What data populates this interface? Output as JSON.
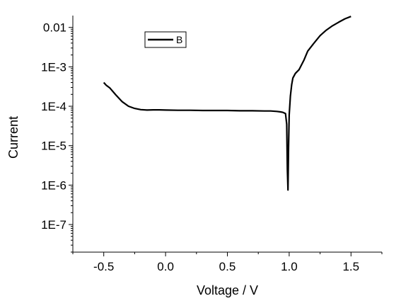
{
  "chart_data": {
    "type": "line",
    "title": "",
    "xlabel": "Voltage / V",
    "ylabel": "Current",
    "xlim": [
      -0.75,
      1.75
    ],
    "ylim_log10": [
      -7.7,
      -1.7
    ],
    "y_scale": "log",
    "x_ticks": [
      -0.5,
      0.0,
      0.5,
      1.0,
      1.5
    ],
    "x_tick_labels": [
      "-0.5",
      "0.0",
      "0.5",
      "1.0",
      "1.5"
    ],
    "y_ticks_log10": [
      -7,
      -6,
      -5,
      -4,
      -3,
      -2
    ],
    "y_tick_labels": [
      "1E-7",
      "1E-6",
      "1E-5",
      "1E-4",
      "1E-3",
      "0.01"
    ],
    "grid": false,
    "legend_position": "top-left",
    "series": [
      {
        "name": "B",
        "color": "#000000",
        "x": [
          -0.5,
          -0.48,
          -0.45,
          -0.4,
          -0.35,
          -0.3,
          -0.25,
          -0.2,
          -0.15,
          -0.1,
          -0.05,
          0.0,
          0.1,
          0.2,
          0.3,
          0.4,
          0.5,
          0.6,
          0.7,
          0.8,
          0.85,
          0.9,
          0.93,
          0.95,
          0.97,
          0.98,
          0.985,
          0.99,
          0.995,
          1.0,
          1.01,
          1.02,
          1.03,
          1.05,
          1.08,
          1.12,
          1.15,
          1.2,
          1.25,
          1.3,
          1.35,
          1.4,
          1.45,
          1.5
        ],
        "y": [
          0.0004,
          0.00034,
          0.00029,
          0.00019,
          0.00013,
          0.0001,
          8.8e-05,
          8.2e-05,
          8e-05,
          8.1e-05,
          8.1e-05,
          8e-05,
          7.9e-05,
          7.9e-05,
          7.8e-05,
          7.8e-05,
          7.8e-05,
          7.7e-05,
          7.7e-05,
          7.6e-05,
          7.6e-05,
          7.4e-05,
          7.2e-05,
          7e-05,
          6.5e-05,
          3.5e-05,
          2.5e-06,
          7.5e-07,
          9e-06,
          6e-05,
          0.00018,
          0.00035,
          0.00052,
          0.00068,
          0.00085,
          0.0015,
          0.0025,
          0.004,
          0.0062,
          0.0085,
          0.011,
          0.0135,
          0.0165,
          0.019
        ]
      }
    ]
  }
}
